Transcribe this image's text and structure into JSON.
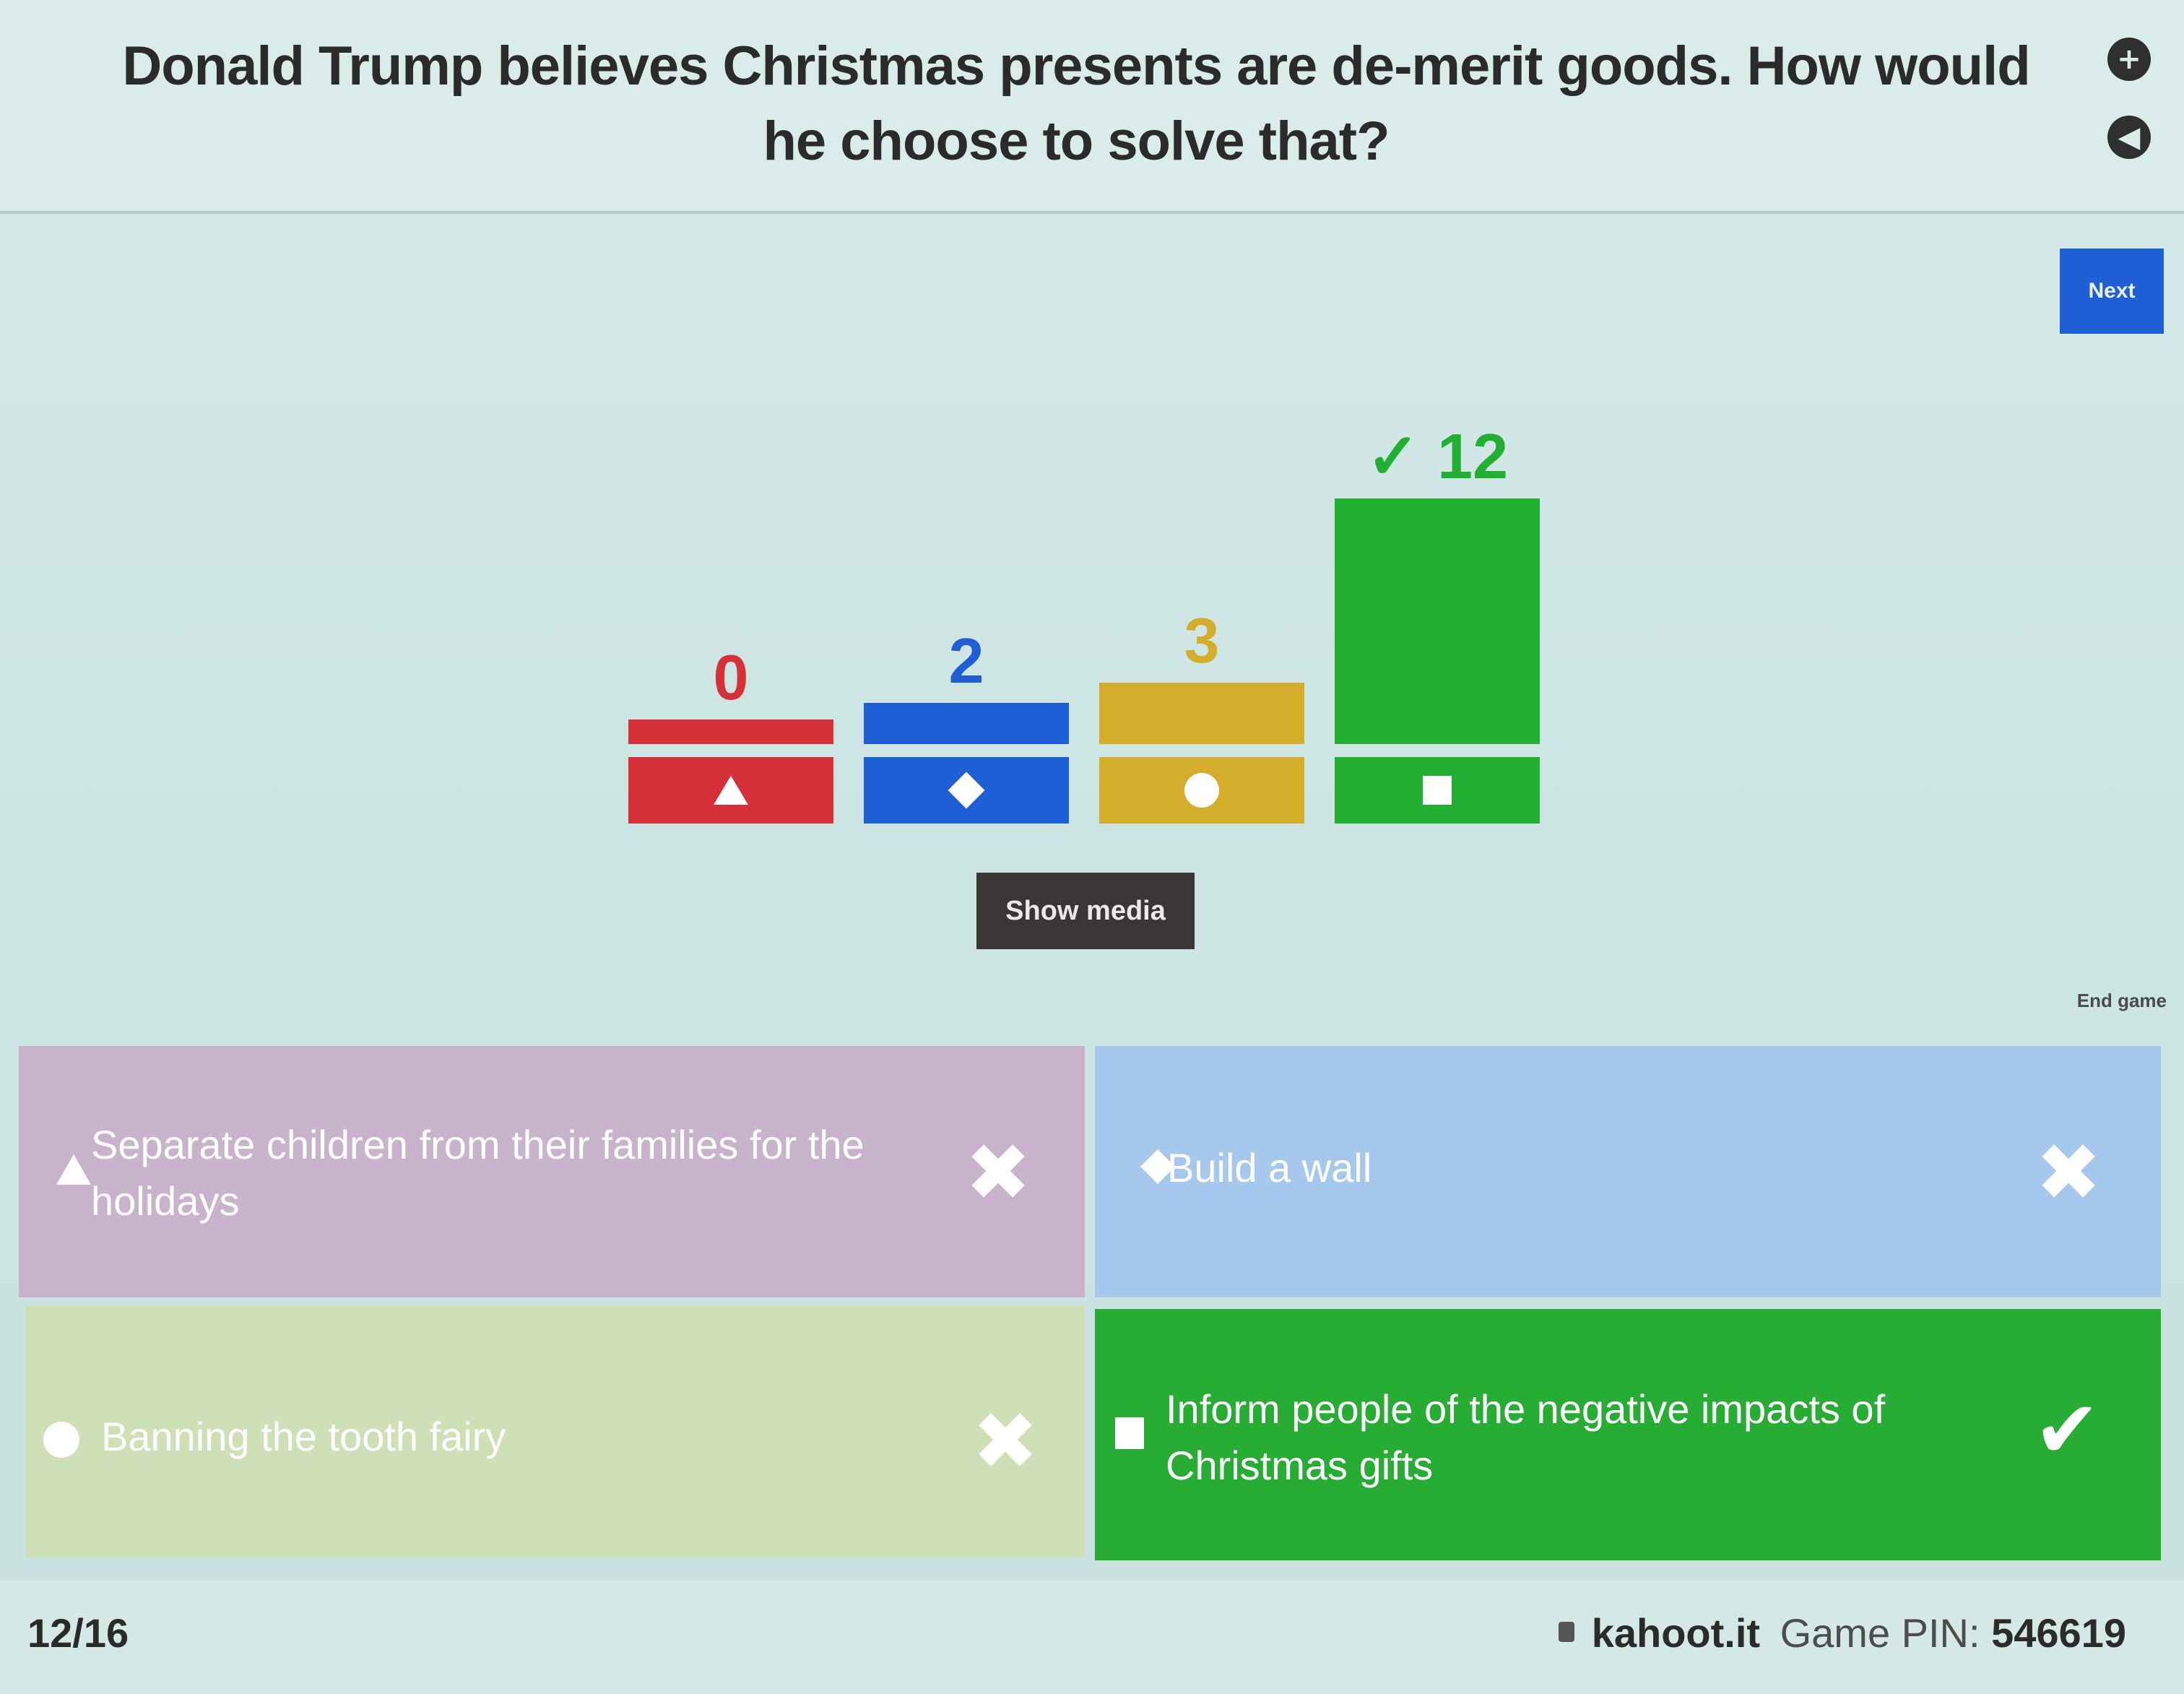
{
  "header": {
    "question": "Donald Trump believes Christmas presents are de-merit goods. How would he choose to solve that?",
    "plus_icon": "plus-circle-icon",
    "sound_icon": "sound-icon"
  },
  "controls": {
    "next_label": "Next",
    "show_media_label": "Show media",
    "end_game_label": "End game"
  },
  "chart_data": {
    "type": "bar",
    "categories": [
      "triangle",
      "diamond",
      "circle",
      "square"
    ],
    "values": [
      0,
      2,
      3,
      12
    ],
    "labels": [
      "0",
      "2",
      "3",
      "✓ 12"
    ],
    "colors": [
      "#d6303a",
      "#1f5fd6",
      "#d4ad2a",
      "#22b033"
    ],
    "correct_index": 3,
    "ylim": [
      0,
      12
    ]
  },
  "answers": [
    {
      "text": "Separate children from their families for the holidays",
      "shape": "triangle",
      "correct": false,
      "mark": "✖"
    },
    {
      "text": "Build a wall",
      "shape": "diamond",
      "correct": false,
      "mark": "✖"
    },
    {
      "text": "Banning the tooth fairy",
      "shape": "circle",
      "correct": false,
      "mark": "✖"
    },
    {
      "text": "Inform people of the negative impacts of Christmas gifts",
      "shape": "square",
      "correct": true,
      "mark": "✔"
    }
  ],
  "footer": {
    "progress": "12/16",
    "site": "kahoot.it",
    "pin_label": "Game PIN:",
    "pin_value": "546619"
  }
}
